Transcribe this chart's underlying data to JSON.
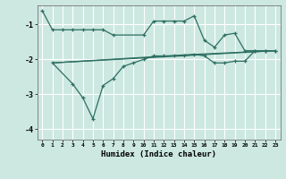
{
  "xlabel": "Humidex (Indice chaleur)",
  "bg_color": "#cce8e0",
  "grid_color": "#ffffff",
  "line_color": "#2e6e62",
  "xlim": [
    -0.5,
    23.5
  ],
  "ylim": [
    -4.3,
    -0.45
  ],
  "yticks": [
    -4,
    -3,
    -2,
    -1
  ],
  "xticks": [
    0,
    1,
    2,
    3,
    4,
    5,
    6,
    7,
    8,
    9,
    10,
    11,
    12,
    13,
    14,
    15,
    16,
    17,
    18,
    19,
    20,
    21,
    22,
    23
  ],
  "series_upper": {
    "x": [
      0,
      1,
      2,
      3,
      4,
      5,
      6,
      7,
      10,
      11,
      12,
      13,
      14,
      15,
      16,
      17,
      18,
      19,
      20,
      21,
      22,
      23
    ],
    "y": [
      -0.6,
      -1.15,
      -1.15,
      -1.15,
      -1.15,
      -1.15,
      -1.15,
      -1.3,
      -1.3,
      -0.9,
      -0.9,
      -0.9,
      -0.9,
      -0.75,
      -1.45,
      -1.65,
      -1.3,
      -1.25,
      -1.75,
      -1.75,
      -1.75,
      -1.75
    ]
  },
  "series_lower": {
    "x": [
      1,
      3,
      4,
      5,
      6,
      7,
      8,
      9,
      10,
      11,
      12,
      13,
      14,
      15,
      16,
      17,
      18,
      19,
      20,
      21,
      22,
      23
    ],
    "y": [
      -2.1,
      -2.7,
      -3.1,
      -3.7,
      -2.75,
      -2.55,
      -2.2,
      -2.1,
      -2.0,
      -1.9,
      -1.9,
      -1.9,
      -1.9,
      -1.85,
      -1.9,
      -2.1,
      -2.1,
      -2.05,
      -2.05,
      -1.75,
      -1.75,
      -1.75
    ]
  },
  "line1": {
    "x": [
      1,
      23
    ],
    "y": [
      -2.1,
      -1.75
    ]
  },
  "line2": {
    "x": [
      1,
      14,
      23
    ],
    "y": [
      -2.1,
      -1.87,
      -1.75
    ]
  }
}
